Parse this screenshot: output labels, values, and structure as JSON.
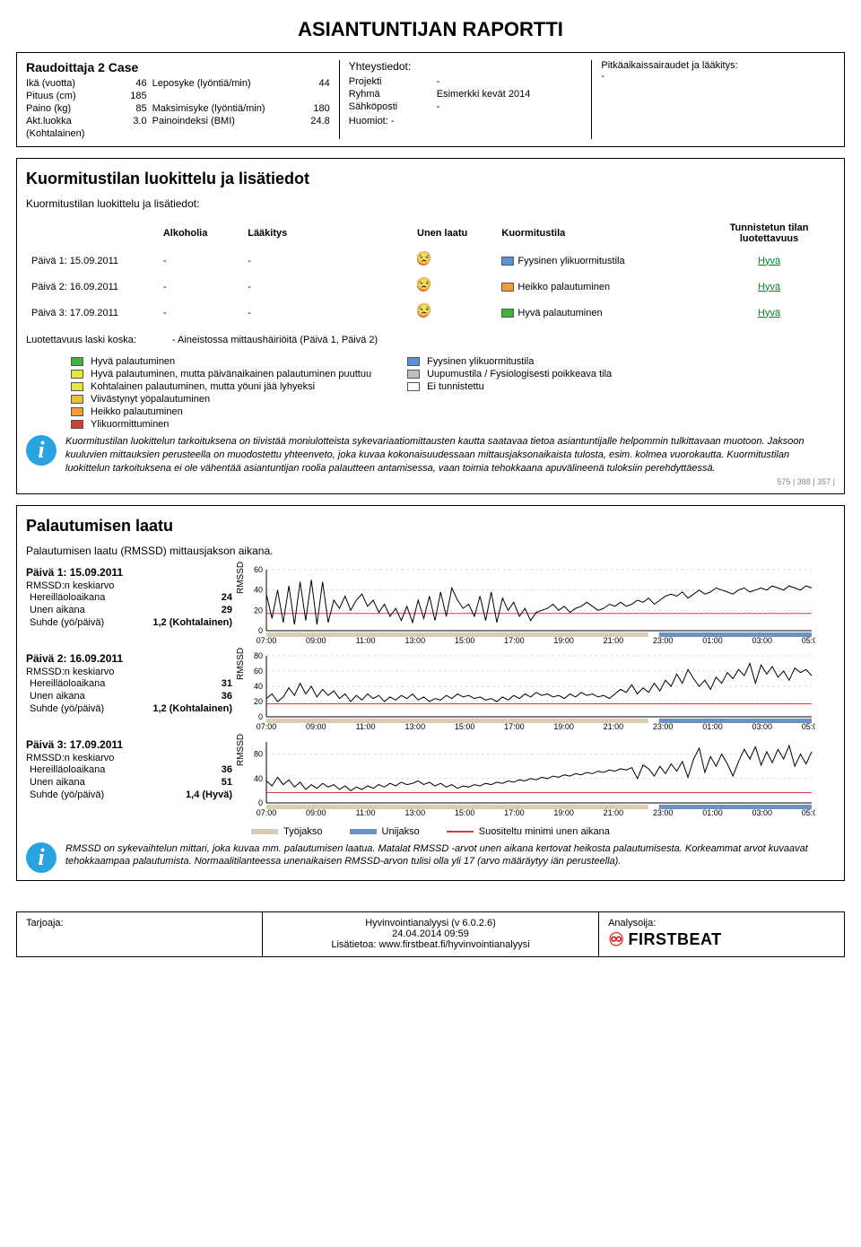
{
  "title": "ASIANTUNTIJAN RAPORTTI",
  "header": {
    "case_title": "Raudoittaja 2 Case",
    "left_rows": [
      {
        "k1": "Ikä (vuotta)",
        "v1": "46",
        "k2": "Leposyke (lyöntiä/min)",
        "v2": "44"
      },
      {
        "k1": "Pituus (cm)",
        "v1": "185",
        "k2": "",
        "v2": ""
      },
      {
        "k1": "Paino (kg)",
        "v1": "85",
        "k2": "Maksimisyke (lyöntiä/min)",
        "v2": "180"
      },
      {
        "k1": "Akt.luokka",
        "v1": "3.0",
        "k2": "Painoindeksi (BMI)",
        "v2": "24.8"
      },
      {
        "k1": "(Kohtalainen)",
        "v1": "",
        "k2": "",
        "v2": ""
      }
    ],
    "contact_title": "Yhteystiedot:",
    "contacts": [
      {
        "k": "Projekti",
        "v": "-"
      },
      {
        "k": "Ryhmä",
        "v": "Esimerkki kevät 2014"
      },
      {
        "k": "Sähköposti",
        "v": "-"
      }
    ],
    "notes_label": "Huomiot: -",
    "diseases_title": "Pitkäaikaissairaudet ja lääkitys:",
    "diseases_value": "-"
  },
  "classification": {
    "section_title": "Kuormitustilan luokittelu ja lisätiedot",
    "subtitle": "Kuormitustilan luokittelu ja lisätiedot:",
    "headers": {
      "day": "",
      "alcohol": "Alkoholia",
      "med": "Lääkitys",
      "sleep": "Unen laatu",
      "state": "Kuormitustila",
      "rel": "Tunnistetun tilan luotettavuus"
    },
    "rows": [
      {
        "day": "Päivä 1: 15.09.2011",
        "alcohol": "-",
        "med": "-",
        "state": "Fyysinen ylikuormitustila",
        "state_color": "#5b8fd6",
        "rel": "Hyvä"
      },
      {
        "day": "Päivä 2: 16.09.2011",
        "alcohol": "-",
        "med": "-",
        "state": "Heikko palautuminen",
        "state_color": "#f39a3a",
        "rel": "Hyvä"
      },
      {
        "day": "Päivä 3: 17.09.2011",
        "alcohol": "-",
        "med": "-",
        "state": "Hyvä palautuminen",
        "state_color": "#3fb23f",
        "rel": "Hyvä"
      }
    ],
    "rel_note_label": "Luotettavuus laski koska:",
    "rel_note_value": "- Aineistossa mittaushäiriöitä (Päivä 1, Päivä 2)",
    "legend_left": [
      {
        "c": "#3fb23f",
        "t": "Hyvä palautuminen"
      },
      {
        "c": "#e6e63a",
        "t": "Hyvä palautuminen, mutta päivänaikainen palautuminen puuttuu"
      },
      {
        "c": "#e6e63a",
        "t": "Kohtalainen palautuminen, mutta yöuni jää lyhyeksi"
      },
      {
        "c": "#e8c23a",
        "t": "Viivästynyt yöpalautuminen"
      },
      {
        "c": "#f39a3a",
        "t": "Heikko palautuminen"
      },
      {
        "c": "#d43a3a",
        "t": "Ylikuormittuminen"
      }
    ],
    "legend_right": [
      {
        "c": "#5b8fd6",
        "t": "Fyysinen ylikuormitustila"
      },
      {
        "c": "#bfbfbf",
        "t": "Uupumustila / Fysiologisesti poikkeava tila"
      },
      {
        "c": "#ffffff",
        "t": "Ei tunnistettu"
      }
    ],
    "info": "Kuormitustilan luokittelun tarkoituksena on tiivistää moniulotteista sykevariaatiomittausten kautta saatavaa tietoa asiantuntijalle helpommin tulkittavaan muotoon. Jaksoon kuuluvien mittauksien perusteella on muodostettu yhteenveto, joka kuvaa kokonaisuudessaan mittausjaksonaikaista tulosta, esim. kolmea vuorokautta. Kuormitustilan luokittelun tarkoituksena ei ole vähentää asiantuntijan roolia palautteen antamisessa, vaan toimia tehokkaana apuvälineenä tuloksiin perehdyttäessä.",
    "tiny_codes": "575 | 388 | 357 |"
  },
  "rmssd": {
    "section_title": "Palautumisen laatu",
    "subtitle": "Palautumisen laatu (RMSSD) mittausjakson aikana.",
    "ylabel": "RMSSD",
    "x_ticks": [
      "07:00",
      "09:00",
      "11:00",
      "13:00",
      "15:00",
      "17:00",
      "19:00",
      "21:00",
      "23:00",
      "01:00",
      "03:00",
      "05:00"
    ],
    "days": [
      {
        "title": "Päivä 1: 15.09.2011",
        "stats_label": "RMSSD:n keskiarvo",
        "rows": [
          {
            "k": "Hereilläoloaikana",
            "v": "24"
          },
          {
            "k": "Unen aikana",
            "v": "29"
          },
          {
            "k": "Suhde (yö/päivä)",
            "v": "1,2 (Kohtalainen)"
          }
        ],
        "ymax": 60,
        "yticks": [
          0,
          20,
          40,
          60
        ],
        "threshold": 17,
        "work": [
          0.0,
          0.7
        ],
        "sleep": [
          0.72,
          1.0
        ],
        "series": [
          36,
          12,
          40,
          8,
          44,
          6,
          48,
          10,
          50,
          6,
          48,
          8,
          30,
          22,
          34,
          20,
          30,
          36,
          24,
          30,
          18,
          26,
          14,
          22,
          10,
          24,
          8,
          30,
          12,
          34,
          10,
          38,
          14,
          42,
          30,
          22,
          26,
          14,
          34,
          10,
          38,
          8,
          32,
          20,
          28,
          14,
          22,
          10,
          18,
          20,
          22,
          26,
          20,
          24,
          18,
          22,
          24,
          28,
          24,
          20,
          22,
          26,
          24,
          28,
          24,
          26,
          30,
          28,
          32,
          26,
          30,
          34,
          36,
          34,
          38,
          32,
          36,
          40,
          36,
          38,
          42,
          40,
          38,
          36,
          40,
          42,
          38,
          40,
          42,
          40,
          44,
          42,
          40,
          44,
          42,
          40,
          44,
          42
        ]
      },
      {
        "title": "Päivä 2: 16.09.2011",
        "stats_label": "RMSSD:n keskiarvo",
        "rows": [
          {
            "k": "Hereilläoloaikana",
            "v": "31"
          },
          {
            "k": "Unen aikana",
            "v": "36"
          },
          {
            "k": "Suhde (yö/päivä)",
            "v": "1,2 (Kohtalainen)"
          }
        ],
        "ymax": 80,
        "yticks": [
          0,
          20,
          40,
          60,
          80
        ],
        "threshold": 17,
        "work": [
          0.0,
          0.7
        ],
        "sleep": [
          0.72,
          1.0
        ],
        "series": [
          24,
          30,
          20,
          26,
          38,
          28,
          44,
          30,
          40,
          26,
          36,
          28,
          34,
          24,
          30,
          20,
          28,
          22,
          30,
          24,
          28,
          20,
          26,
          22,
          28,
          24,
          30,
          22,
          26,
          20,
          24,
          22,
          28,
          24,
          30,
          26,
          28,
          24,
          26,
          22,
          24,
          20,
          26,
          22,
          28,
          24,
          30,
          26,
          32,
          28,
          30,
          26,
          28,
          24,
          30,
          26,
          32,
          28,
          30,
          26,
          28,
          24,
          30,
          36,
          32,
          42,
          30,
          38,
          32,
          44,
          34,
          48,
          40,
          56,
          44,
          62,
          50,
          40,
          48,
          36,
          52,
          44,
          58,
          50,
          62,
          54,
          70,
          44,
          68,
          56,
          66,
          52,
          60,
          48,
          64,
          58,
          62,
          54
        ]
      },
      {
        "title": "Päivä 3: 17.09.2011",
        "stats_label": "RMSSD:n keskiarvo",
        "rows": [
          {
            "k": "Hereilläoloaikana",
            "v": "36"
          },
          {
            "k": "Unen aikana",
            "v": "51"
          },
          {
            "k": "Suhde (yö/päivä)",
            "v": "1,4 (Hyvä)"
          }
        ],
        "ymax": 100,
        "yticks": [
          0,
          40,
          80
        ],
        "threshold": 17,
        "work": [
          0.0,
          0.7
        ],
        "sleep": [
          0.72,
          1.0
        ],
        "series": [
          36,
          28,
          42,
          30,
          38,
          26,
          34,
          22,
          30,
          24,
          32,
          26,
          30,
          22,
          28,
          20,
          26,
          22,
          28,
          24,
          30,
          26,
          32,
          28,
          34,
          30,
          32,
          36,
          30,
          34,
          28,
          32,
          26,
          30,
          24,
          28,
          26,
          30,
          28,
          32,
          30,
          34,
          32,
          36,
          34,
          38,
          36,
          40,
          38,
          42,
          40,
          44,
          42,
          46,
          44,
          48,
          46,
          50,
          48,
          52,
          50,
          54,
          52,
          56,
          54,
          58,
          40,
          62,
          56,
          44,
          60,
          48,
          64,
          52,
          68,
          42,
          72,
          90,
          50,
          76,
          60,
          80,
          64,
          44,
          68,
          88,
          72,
          92,
          62,
          84,
          66,
          88,
          72,
          94,
          60,
          80,
          64,
          84
        ]
      }
    ],
    "legend": {
      "work": "Työjakso",
      "sleep": "Unijakso",
      "threshold": "Suositeltu minimi unen aikana"
    },
    "colors": {
      "work_bar": "#d9cbb4",
      "sleep_bar": "#6a93c2",
      "threshold": "#d43a3a",
      "line": "#000",
      "grid": "#dcdcdc"
    },
    "info": "RMSSD on sykevaihtelun mittari, joka kuvaa mm. palautumisen laatua. Matalat RMSSD -arvot unen aikana kertovat heikosta palautumisesta. Korkeammat arvot kuvaavat tehokkaampaa palautumista. Normaalitilanteessa unenaikaisen RMSSD-arvon tulisi olla yli 17 (arvo määräytyy iän perusteella)."
  },
  "footer": {
    "offer_label": "Tarjoaja:",
    "center": [
      "Hyvinvointianalyysi (v 6.0.2.6)",
      "24.04.2014 09:59",
      "Lisätietoa: www.firstbeat.fi/hyvinvointianalyysi"
    ],
    "analyst_label": "Analysoija:",
    "logo": "FIRSTBEAT"
  }
}
